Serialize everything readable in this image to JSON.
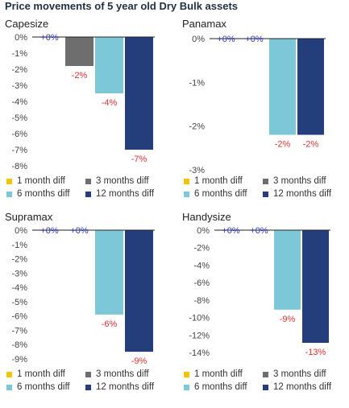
{
  "title": "Price movements of 5 year old Dry Bulk assets",
  "colors": {
    "1 month diff": "#f5c400",
    "3 months diff": "#6e6e6e",
    "6 months diff": "#7cc8d8",
    "12 months diff": "#243e7c",
    "positive_label": "#2a35c2",
    "negative_label": "#e03030"
  },
  "chart_data": [
    {
      "type": "bar",
      "title": "Capesize",
      "categories": [
        "1 month diff",
        "3 months diff",
        "6 months diff",
        "12 months diff"
      ],
      "values": [
        0,
        -1.8,
        -3.5,
        -7
      ],
      "data_labels": [
        "+0%",
        "-2%",
        "-4%",
        "-7%"
      ],
      "ylim": [
        -8,
        0
      ],
      "yticks": [
        "0%",
        "-1%",
        "-2%",
        "-3%",
        "-4%",
        "-5%",
        "-6%",
        "-7%",
        "-8%"
      ],
      "legend": [
        "1 month diff",
        "3 months diff",
        "6 months diff",
        "12 months diff"
      ]
    },
    {
      "type": "bar",
      "title": "Panamax",
      "categories": [
        "1 month diff",
        "3 months diff",
        "6 months diff",
        "12 months diff"
      ],
      "values": [
        0,
        0,
        -2.2,
        -2.2
      ],
      "data_labels": [
        "+0%",
        "+0%",
        "-2%",
        "-2%"
      ],
      "ylim": [
        -3,
        0
      ],
      "yticks": [
        "0%",
        "-1%",
        "-2%",
        "-3%"
      ],
      "legend": [
        "1 month diff",
        "3 months diff",
        "6 months diff",
        "12 months diff"
      ]
    },
    {
      "type": "bar",
      "title": "Supramax",
      "categories": [
        "1 month diff",
        "3 months diff",
        "6 months diff",
        "12 months diff"
      ],
      "values": [
        0,
        0,
        -5.9,
        -8.5
      ],
      "data_labels": [
        "+0%",
        "+0%",
        "-6%",
        "-9%"
      ],
      "ylim": [
        -9,
        0
      ],
      "yticks": [
        "0%",
        "-1%",
        "-2%",
        "-3%",
        "-4%",
        "-5%",
        "-6%",
        "-7%",
        "-8%",
        "-9%"
      ],
      "legend": [
        "1 month diff",
        "3 months diff",
        "6 months diff",
        "12 months diff"
      ]
    },
    {
      "type": "bar",
      "title": "Handysize",
      "categories": [
        "1 month diff",
        "3 months diff",
        "6 months diff",
        "12 months diff"
      ],
      "values": [
        0,
        0,
        -9.1,
        -12.9
      ],
      "data_labels": [
        "+0%",
        "+0%",
        "-9%",
        "-13%"
      ],
      "ylim": [
        -14,
        0
      ],
      "yticks": [
        "0%",
        "-2%",
        "-4%",
        "-6%",
        "-8%",
        "-10%",
        "-12%",
        "-14%"
      ],
      "legend": [
        "1 month diff",
        "3 months diff",
        "6 months diff",
        "12 months diff"
      ]
    }
  ]
}
